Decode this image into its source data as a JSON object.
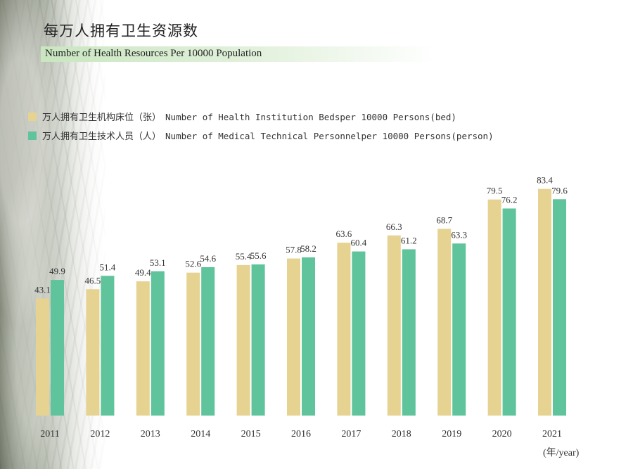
{
  "header": {
    "title_cn": "每万人拥有卫生资源数",
    "title_en": "Number of Health Resources Per 10000 Population"
  },
  "colors": {
    "beds": "#e6d392",
    "personnel": "#5fc39b"
  },
  "chart_data": {
    "type": "bar",
    "title": "每万人拥有卫生资源数 Number of Health Resources Per 10000 Population",
    "categories": [
      "2011",
      "2012",
      "2013",
      "2014",
      "2015",
      "2016",
      "2017",
      "2018",
      "2019",
      "2020",
      "2021"
    ],
    "series": [
      {
        "name_cn": "万人拥有卫生机构床位（张）",
        "name_en": "Number of Health Institution Bedsper 10000 Persons(bed)",
        "values": [
          43.1,
          46.5,
          49.4,
          52.6,
          55.4,
          57.8,
          63.6,
          66.3,
          68.7,
          79.5,
          83.4
        ]
      },
      {
        "name_cn": "万人拥有卫生技术人员（人）",
        "name_en": "Number of Medical Technical Personnelper 10000 Persons(person)",
        "values": [
          49.9,
          51.4,
          53.1,
          54.6,
          55.6,
          58.2,
          60.4,
          61.2,
          63.3,
          76.2,
          79.6
        ]
      }
    ],
    "xlabel": "(年/year)",
    "ylabel": "",
    "ylim": [
      0,
      100
    ],
    "legend": "top-left",
    "grid": false
  }
}
